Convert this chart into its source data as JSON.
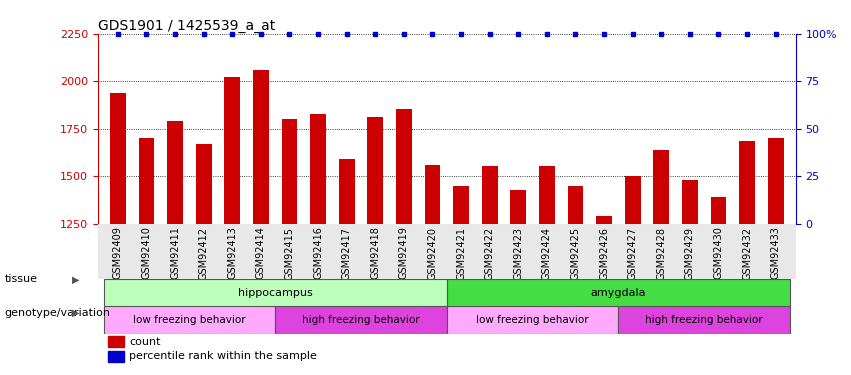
{
  "title": "GDS1901 / 1425539_a_at",
  "samples": [
    "GSM92409",
    "GSM92410",
    "GSM92411",
    "GSM92412",
    "GSM92413",
    "GSM92414",
    "GSM92415",
    "GSM92416",
    "GSM92417",
    "GSM92418",
    "GSM92419",
    "GSM92420",
    "GSM92421",
    "GSM92422",
    "GSM92423",
    "GSM92424",
    "GSM92425",
    "GSM92426",
    "GSM92427",
    "GSM92428",
    "GSM92429",
    "GSM92430",
    "GSM92432",
    "GSM92433"
  ],
  "counts": [
    1940,
    1700,
    1790,
    1670,
    2020,
    2060,
    1800,
    1830,
    1590,
    1810,
    1855,
    1560,
    1450,
    1555,
    1430,
    1555,
    1450,
    1290,
    1500,
    1640,
    1480,
    1390,
    1685,
    1700
  ],
  "ylim_left": [
    1250,
    2250
  ],
  "ylim_right": [
    0,
    100
  ],
  "yticks_left": [
    1250,
    1500,
    1750,
    2000,
    2250
  ],
  "yticks_right": [
    0,
    25,
    50,
    75,
    100
  ],
  "bar_color": "#cc0000",
  "dot_color": "#0000cc",
  "tissue_groups": [
    {
      "label": "hippocampus",
      "start": 0,
      "end": 11,
      "color": "#bbffbb"
    },
    {
      "label": "amygdala",
      "start": 12,
      "end": 23,
      "color": "#44dd44"
    }
  ],
  "genotype_groups": [
    {
      "label": "low freezing behavior",
      "start": 0,
      "end": 5,
      "color": "#ffaaff"
    },
    {
      "label": "high freezing behavior",
      "start": 6,
      "end": 11,
      "color": "#dd44dd"
    },
    {
      "label": "low freezing behavior",
      "start": 12,
      "end": 17,
      "color": "#ffaaff"
    },
    {
      "label": "high freezing behavior",
      "start": 18,
      "end": 23,
      "color": "#dd44dd"
    }
  ],
  "tissue_row_label": "tissue",
  "genotype_row_label": "genotype/variation",
  "legend_count_label": "count",
  "legend_percentile_label": "percentile rank within the sample",
  "title_fontsize": 10,
  "axis_fontsize": 8,
  "tick_fontsize": 7,
  "annot_fontsize": 8
}
